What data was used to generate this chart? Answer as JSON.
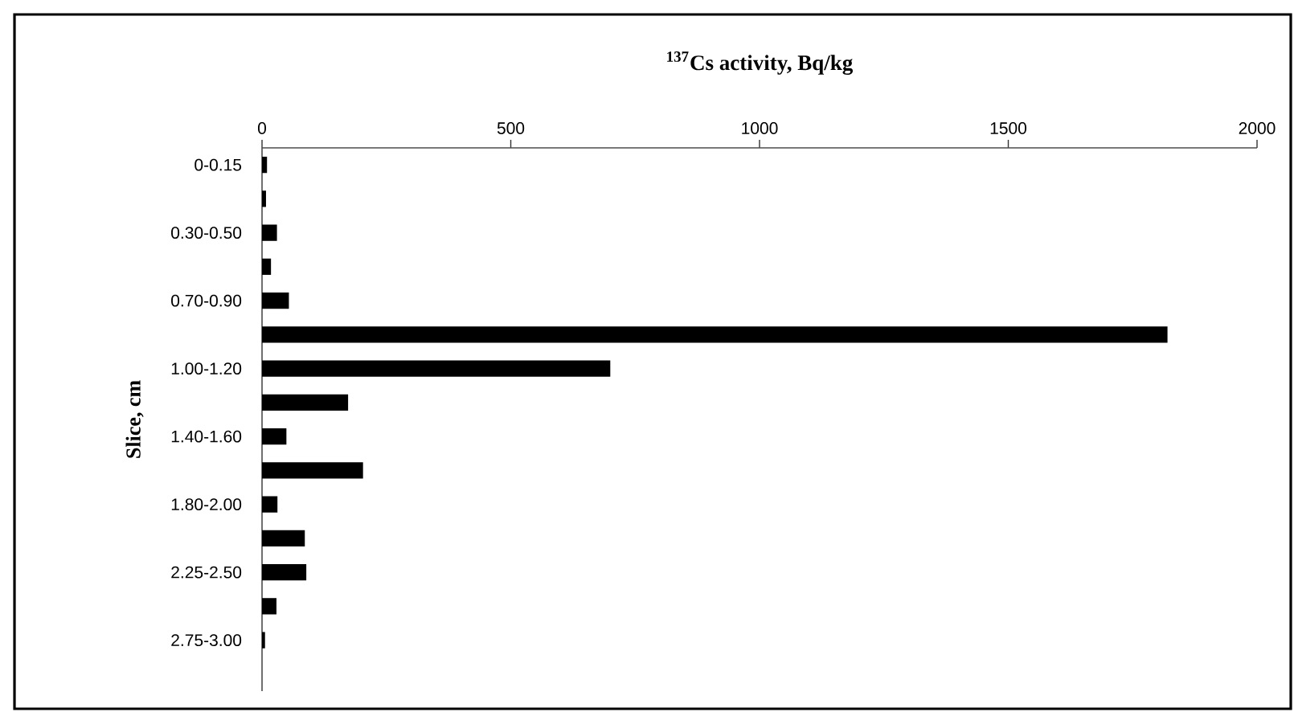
{
  "chart_data": {
    "type": "bar",
    "orientation": "horizontal",
    "title": "$^{137}$Cs activity, Bq/kg",
    "ylabel": "Slice, cm",
    "categories": [
      "0-0.15",
      null,
      "0.30-0.50",
      null,
      "0.70-0.90",
      null,
      "1.00-1.20",
      null,
      "1.40-1.60",
      null,
      "1.80-2.00",
      null,
      "2.25-2.50",
      null,
      "2.75-3.00",
      null
    ],
    "values": [
      10,
      8,
      30,
      18,
      54,
      1820,
      700,
      173,
      49,
      203,
      31,
      86,
      89,
      29,
      6,
      null
    ],
    "color": "#000000",
    "xlim": [
      0,
      2000
    ],
    "xticks": [
      0,
      500,
      1000,
      1500,
      2000
    ],
    "grid": false
  }
}
